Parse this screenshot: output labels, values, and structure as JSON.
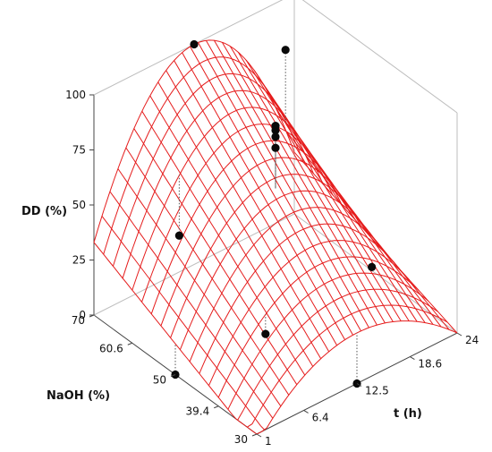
{
  "chart_data": {
    "type": "surface3d",
    "zlabel": "DD (%)",
    "xlabel": "NaOH (%)",
    "ylabel": "t (h)",
    "z_ticks": [
      "0",
      "25",
      "50",
      "75",
      "100"
    ],
    "x_ticks": [
      "70",
      "60.6",
      "50",
      "39.4",
      "30"
    ],
    "y_ticks": [
      "1",
      "6.4",
      "12.5",
      "18.6",
      "24"
    ],
    "xlim": [
      30,
      70
    ],
    "ylim": [
      1,
      24
    ],
    "zlim": [
      0,
      100
    ],
    "surface": {
      "model": "quadratic",
      "peak": {
        "naoh": 70,
        "t": 12.5,
        "dd": 100
      },
      "corner_values": {
        "naoh30_t1": -5,
        "naoh70_t1": 33,
        "naoh30_t24": 0,
        "naoh70_t24": 28
      }
    },
    "points": [
      {
        "naoh": 60.6,
        "t": 6.4,
        "dd": 38
      },
      {
        "naoh": 60.6,
        "t": 18.6,
        "dd": 98
      },
      {
        "naoh": 50,
        "t": 12.5,
        "dd": 90
      },
      {
        "naoh": 50,
        "t": 12.5,
        "dd": 88
      },
      {
        "naoh": 50,
        "t": 12.5,
        "dd": 85
      },
      {
        "naoh": 50,
        "t": 12.5,
        "dd": 80
      },
      {
        "naoh": 70,
        "t": 12.5,
        "dd": 100
      },
      {
        "naoh": 39.4,
        "t": 6.4,
        "dd": 22
      },
      {
        "naoh": 39.4,
        "t": 18.6,
        "dd": 28
      },
      {
        "naoh": 50,
        "t": 1,
        "dd": 0
      },
      {
        "naoh": 30,
        "t": 12.5,
        "dd": 0
      }
    ]
  }
}
